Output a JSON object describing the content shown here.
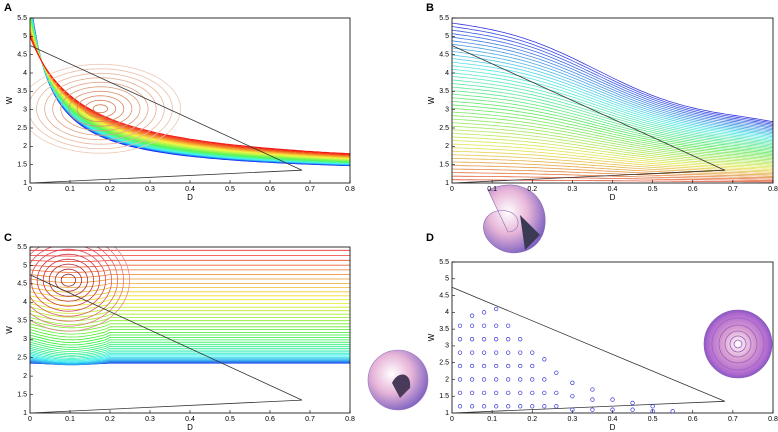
{
  "chart_data": [
    {
      "type": "contour",
      "panel_label": "A",
      "xlabel": "D",
      "ylabel": "W",
      "xlim": [
        0,
        0.8
      ],
      "ylim": [
        1,
        5.5
      ],
      "xticks": [
        0,
        0.1,
        0.2,
        0.3,
        0.4,
        0.5,
        0.6,
        0.7,
        0.8
      ],
      "yticks": [
        1,
        1.5,
        2,
        2.5,
        3,
        3.5,
        4,
        4.5,
        5,
        5.5
      ],
      "boundary": {
        "x": [
          0,
          0,
          0.68,
          0
        ],
        "y": [
          1,
          4.75,
          1.35,
          1
        ]
      }
    },
    {
      "type": "contour",
      "panel_label": "B",
      "xlabel": "D",
      "ylabel": "W",
      "xlim": [
        0,
        0.8
      ],
      "ylim": [
        1,
        5.5
      ],
      "xticks": [
        0,
        0.1,
        0.2,
        0.3,
        0.4,
        0.5,
        0.6,
        0.7,
        0.8
      ],
      "yticks": [
        1,
        1.5,
        2,
        2.5,
        3,
        3.5,
        4,
        4.5,
        5,
        5.5
      ],
      "boundary": {
        "x": [
          0,
          0,
          0.68,
          0
        ],
        "y": [
          1,
          4.75,
          1.35,
          1
        ]
      }
    },
    {
      "type": "contour",
      "panel_label": "C",
      "xlabel": "D",
      "ylabel": "W",
      "xlim": [
        0,
        0.8
      ],
      "ylim": [
        1,
        5.5
      ],
      "xticks": [
        0,
        0.1,
        0.2,
        0.3,
        0.4,
        0.5,
        0.6,
        0.7,
        0.8
      ],
      "yticks": [
        1,
        1.5,
        2,
        2.5,
        3,
        3.5,
        4,
        4.5,
        5,
        5.5
      ],
      "boundary": {
        "x": [
          0,
          0,
          0.68,
          0
        ],
        "y": [
          1,
          4.75,
          1.35,
          1
        ]
      }
    },
    {
      "type": "scatter",
      "panel_label": "D",
      "xlabel": "D",
      "ylabel": "W",
      "color": "#3b3bd6",
      "xlim": [
        0,
        0.8
      ],
      "ylim": [
        1,
        5.5
      ],
      "xticks": [
        0,
        0.1,
        0.2,
        0.3,
        0.4,
        0.5,
        0.6,
        0.7,
        0.8
      ],
      "yticks": [
        1,
        1.5,
        2,
        2.5,
        3,
        3.5,
        4,
        4.5,
        5,
        5.5
      ],
      "boundary": {
        "x": [
          0,
          0,
          0.68,
          0
        ],
        "y": [
          1,
          4.75,
          1.35,
          1
        ]
      },
      "x": [
        0.02,
        0.02,
        0.02,
        0.02,
        0.02,
        0.02,
        0.02,
        0.05,
        0.05,
        0.05,
        0.05,
        0.05,
        0.05,
        0.05,
        0.05,
        0.08,
        0.08,
        0.08,
        0.08,
        0.08,
        0.08,
        0.08,
        0.08,
        0.11,
        0.11,
        0.11,
        0.11,
        0.11,
        0.11,
        0.11,
        0.11,
        0.14,
        0.14,
        0.14,
        0.14,
        0.14,
        0.14,
        0.14,
        0.17,
        0.17,
        0.17,
        0.17,
        0.17,
        0.17,
        0.2,
        0.2,
        0.2,
        0.2,
        0.2,
        0.23,
        0.23,
        0.23,
        0.23,
        0.26,
        0.26,
        0.26,
        0.3,
        0.3,
        0.3,
        0.35,
        0.35,
        0.35,
        0.4,
        0.4,
        0.45,
        0.45,
        0.5,
        0.5,
        0.55
      ],
      "y": [
        1.2,
        1.6,
        2.0,
        2.4,
        2.8,
        3.2,
        3.6,
        1.2,
        1.6,
        2.0,
        2.4,
        2.8,
        3.2,
        3.6,
        3.9,
        1.2,
        1.6,
        2.0,
        2.4,
        2.8,
        3.2,
        3.6,
        4.0,
        1.2,
        1.6,
        2.0,
        2.4,
        2.8,
        3.2,
        3.6,
        4.1,
        1.2,
        1.6,
        2.0,
        2.4,
        2.8,
        3.2,
        3.6,
        1.2,
        1.6,
        2.0,
        2.4,
        2.8,
        3.2,
        1.2,
        1.6,
        2.0,
        2.4,
        2.8,
        1.2,
        1.6,
        2.0,
        2.6,
        1.2,
        1.6,
        2.2,
        1.1,
        1.5,
        1.9,
        1.1,
        1.4,
        1.7,
        1.1,
        1.4,
        1.1,
        1.3,
        1.05,
        1.2,
        1.05
      ]
    }
  ]
}
